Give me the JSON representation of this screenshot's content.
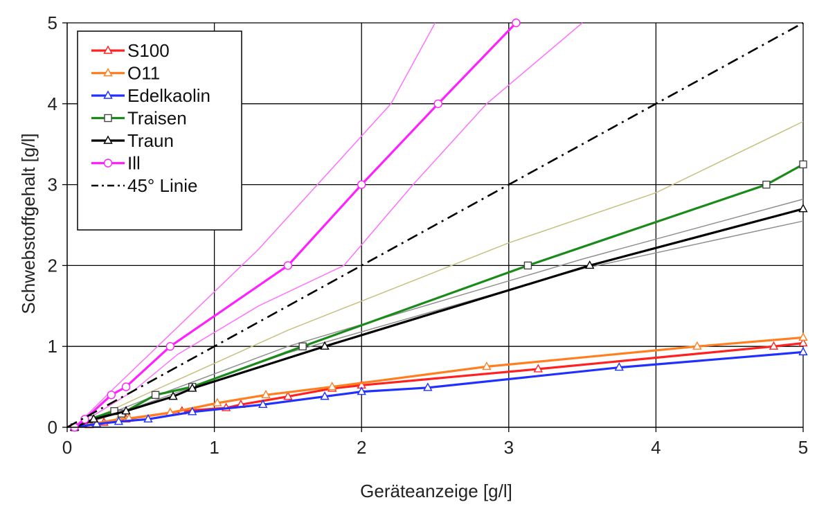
{
  "chart_data": {
    "type": "line",
    "title": "",
    "xlabel": "Geräteanzeige [g/l]",
    "ylabel": "Schwebstoffgehalt [g/l]",
    "xlim": [
      0,
      5
    ],
    "ylim": [
      0,
      5
    ],
    "xticks": [
      "0",
      "1",
      "2",
      "3",
      "4",
      "5"
    ],
    "yticks": [
      "0",
      "1",
      "2",
      "3",
      "4",
      "5"
    ],
    "grid": true,
    "legend_position": "top-left",
    "series": [
      {
        "name": "S100",
        "color": "#ff2020",
        "marker": "triangle",
        "points": [
          [
            0.05,
            0
          ],
          [
            0.15,
            0.03
          ],
          [
            0.25,
            0.06
          ],
          [
            0.4,
            0.1
          ],
          [
            0.7,
            0.18
          ],
          [
            0.78,
            0.2
          ],
          [
            1.08,
            0.24
          ],
          [
            1.18,
            0.28
          ],
          [
            1.5,
            0.38
          ],
          [
            1.8,
            0.48
          ],
          [
            2.0,
            0.52
          ],
          [
            3.2,
            0.72
          ],
          [
            4.8,
            1.0
          ],
          [
            5.0,
            1.04
          ]
        ]
      },
      {
        "name": "O11",
        "color": "#ff7f20",
        "marker": "triangle",
        "points": [
          [
            0.05,
            0
          ],
          [
            0.2,
            0.05
          ],
          [
            0.35,
            0.1
          ],
          [
            0.42,
            0.11
          ],
          [
            0.7,
            0.18
          ],
          [
            1.02,
            0.3
          ],
          [
            1.35,
            0.4
          ],
          [
            1.8,
            0.5
          ],
          [
            2.85,
            0.75
          ],
          [
            4.28,
            1.0
          ],
          [
            5.0,
            1.11
          ]
        ]
      },
      {
        "name": "Edelkaolin",
        "color": "#2030ff",
        "marker": "triangle",
        "points": [
          [
            0.05,
            0
          ],
          [
            0.2,
            0.04
          ],
          [
            0.35,
            0.07
          ],
          [
            0.55,
            0.1
          ],
          [
            0.85,
            0.19
          ],
          [
            1.33,
            0.28
          ],
          [
            1.75,
            0.38
          ],
          [
            2.0,
            0.44
          ],
          [
            2.45,
            0.49
          ],
          [
            3.75,
            0.74
          ],
          [
            5.0,
            0.93
          ]
        ]
      },
      {
        "name": "Traisen",
        "color": "#1a8a1a",
        "marker": "square",
        "points": [
          [
            0.05,
            0
          ],
          [
            0.15,
            0.1
          ],
          [
            0.32,
            0.2
          ],
          [
            0.37,
            0.17
          ],
          [
            0.6,
            0.4
          ],
          [
            0.85,
            0.5
          ],
          [
            1.6,
            1.0
          ],
          [
            3.13,
            2.0
          ],
          [
            4.75,
            3.0
          ],
          [
            5.0,
            3.25
          ]
        ]
      },
      {
        "name": "Traun",
        "color": "#000000",
        "marker": "triangle",
        "points": [
          [
            0.05,
            0
          ],
          [
            0.18,
            0.1
          ],
          [
            0.4,
            0.2
          ],
          [
            0.72,
            0.38
          ],
          [
            0.85,
            0.48
          ],
          [
            1.75,
            1.0
          ],
          [
            3.55,
            2.0
          ],
          [
            5.0,
            2.7
          ]
        ]
      },
      {
        "name": "Ill",
        "color": "#ff20ff",
        "marker": "circle",
        "points": [
          [
            0.05,
            0
          ],
          [
            0.12,
            0.1
          ],
          [
            0.3,
            0.4
          ],
          [
            0.4,
            0.5
          ],
          [
            0.7,
            1.0
          ],
          [
            1.5,
            2.0
          ],
          [
            2.0,
            3.0
          ],
          [
            2.52,
            4.0
          ],
          [
            3.05,
            5.0
          ]
        ]
      },
      {
        "name": "45° Linie",
        "color": "#000000",
        "marker": "none",
        "dash": "dashdot",
        "points": [
          [
            0,
            0
          ],
          [
            5,
            5
          ]
        ]
      }
    ],
    "thin_lines": [
      {
        "color": "#ff70ff",
        "points": [
          [
            0.05,
            0
          ],
          [
            0.3,
            0.45
          ],
          [
            0.7,
            1.15
          ],
          [
            1.3,
            2.2
          ],
          [
            1.7,
            3.0
          ],
          [
            2.2,
            4.0
          ],
          [
            2.5,
            5.0
          ]
        ]
      },
      {
        "color": "#ff70ff",
        "points": [
          [
            0.05,
            0
          ],
          [
            0.45,
            0.45
          ],
          [
            0.75,
            0.9
          ],
          [
            1.3,
            1.5
          ],
          [
            1.88,
            2.0
          ],
          [
            2.35,
            3.0
          ],
          [
            2.85,
            4.0
          ],
          [
            3.5,
            5.0
          ]
        ]
      },
      {
        "color": "#c8c080",
        "points": [
          [
            0.05,
            0
          ],
          [
            0.5,
            0.38
          ],
          [
            1.5,
            1.2
          ],
          [
            3.0,
            2.28
          ],
          [
            4.0,
            2.9
          ],
          [
            5.0,
            3.78
          ]
        ]
      },
      {
        "color": "#909090",
        "points": [
          [
            0.05,
            0
          ],
          [
            0.5,
            0.27
          ],
          [
            1.5,
            0.92
          ],
          [
            3.5,
            1.96
          ],
          [
            5.0,
            2.55
          ]
        ]
      },
      {
        "color": "#909090",
        "points": [
          [
            0.05,
            0
          ],
          [
            0.5,
            0.32
          ],
          [
            1.5,
            1.0
          ],
          [
            3.5,
            2.08
          ],
          [
            5.0,
            2.82
          ]
        ]
      }
    ]
  }
}
